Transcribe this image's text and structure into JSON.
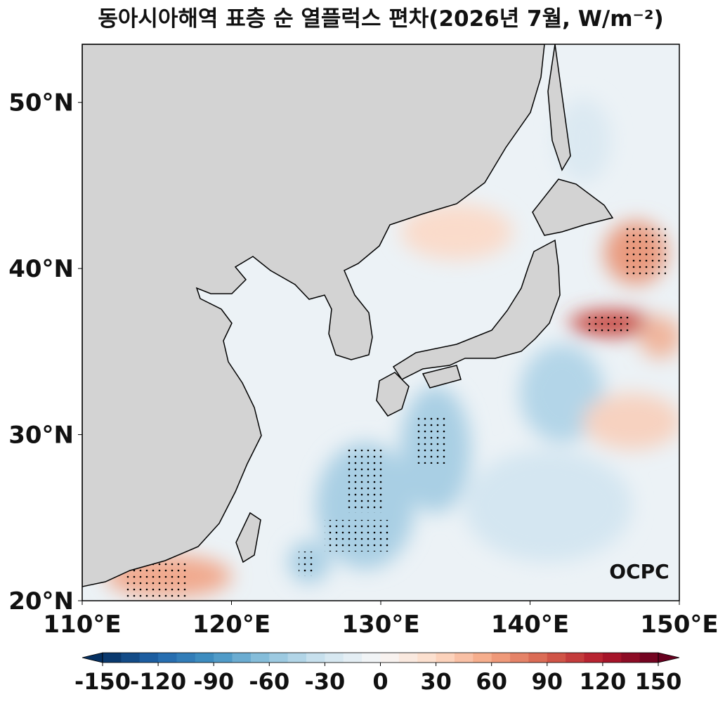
{
  "chart_data": {
    "type": "map",
    "title": "동아시아해역 표층 순 열플럭스 편차(2026년 7월, W/m⁻²)",
    "xlim": [
      110,
      150
    ],
    "ylim": [
      20,
      53.5
    ],
    "xticks": [
      {
        "value": 110,
        "label": "110°E"
      },
      {
        "value": 120,
        "label": "120°E"
      },
      {
        "value": 130,
        "label": "130°E"
      },
      {
        "value": 140,
        "label": "140°E"
      },
      {
        "value": 150,
        "label": "150°E"
      }
    ],
    "yticks": [
      {
        "value": 20,
        "label": "20°N"
      },
      {
        "value": 30,
        "label": "30°N"
      },
      {
        "value": 40,
        "label": "40°N"
      },
      {
        "value": 50,
        "label": "50°N"
      }
    ],
    "colorbar": {
      "lim": [
        -150,
        150
      ],
      "ticks": [
        -150,
        -120,
        -90,
        -60,
        -30,
        0,
        30,
        60,
        90,
        120,
        150
      ],
      "cmap": [
        "#053061",
        "#2166ac",
        "#4393c3",
        "#92c5de",
        "#d1e5f0",
        "#f7f7f7",
        "#fddbc7",
        "#f4a582",
        "#d6604d",
        "#b2182b",
        "#67001f"
      ]
    },
    "logo": "OCPC"
  }
}
